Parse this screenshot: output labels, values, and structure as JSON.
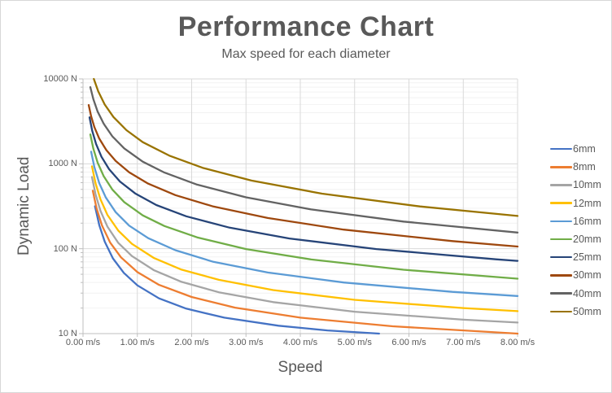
{
  "title": "Performance Chart",
  "subtitle": "Max speed for each diameter",
  "text_color": "#595959",
  "background": "#FFFFFF",
  "frame_border_color": "#D7D7D7",
  "grid": {
    "major_color": "#D9D9D9",
    "minor_color": "#F2F2F2",
    "axis_color": "#BFBFBF"
  },
  "x_axis": {
    "title": "Speed",
    "tick_labels": [
      "0.00 m/s",
      "1.00 m/s",
      "2.00 m/s",
      "3.00 m/s",
      "4.00 m/s",
      "5.00 m/s",
      "6.00 m/s",
      "7.00 m/s",
      "8.00 m/s"
    ],
    "tick_values": [
      0,
      1,
      2,
      3,
      4,
      5,
      6,
      7,
      8
    ]
  },
  "y_axis": {
    "title": "Dynamic Load",
    "tick_labels": [
      "10000 N",
      "1000 N",
      "100 N",
      "10 N"
    ],
    "tick_values": [
      10000,
      1000,
      100,
      10
    ]
  },
  "chart_data": {
    "type": "line",
    "title": "Performance Chart",
    "subtitle": "Max speed for each diameter",
    "xlabel": "Speed",
    "ylabel": "Dynamic Load",
    "x_unit": "m/s",
    "y_unit": "N",
    "x_scale": "linear",
    "y_scale": "log10",
    "xlim": [
      0,
      8
    ],
    "ylim": [
      10,
      10000
    ],
    "grid_on": true,
    "legend_position": "right",
    "series": [
      {
        "name": "6mm",
        "color": "#4472C4",
        "points": [
          [
            0.22,
            316
          ],
          [
            0.3,
            189
          ],
          [
            0.4,
            121
          ],
          [
            0.55,
            77
          ],
          [
            0.75,
            52
          ],
          [
            1,
            37
          ],
          [
            1.4,
            26
          ],
          [
            1.9,
            19.7
          ],
          [
            2.6,
            15.4
          ],
          [
            3.6,
            12.4
          ],
          [
            4.5,
            10.9
          ],
          [
            5.45,
            10
          ]
        ]
      },
      {
        "name": "8mm",
        "color": "#ED7D31",
        "points": [
          [
            0.18,
            482
          ],
          [
            0.25,
            298
          ],
          [
            0.35,
            187
          ],
          [
            0.5,
            118
          ],
          [
            0.7,
            79
          ],
          [
            1,
            53
          ],
          [
            1.4,
            37.5
          ],
          [
            2,
            27
          ],
          [
            2.8,
            20.2
          ],
          [
            4,
            15.4
          ],
          [
            5.7,
            12.2
          ],
          [
            8,
            10
          ]
        ]
      },
      {
        "name": "10mm",
        "color": "#A5A5A5",
        "points": [
          [
            0.165,
            700
          ],
          [
            0.23,
            437
          ],
          [
            0.32,
            280
          ],
          [
            0.45,
            182
          ],
          [
            0.65,
            117
          ],
          [
            0.9,
            82
          ],
          [
            1.3,
            56
          ],
          [
            1.8,
            41
          ],
          [
            2.5,
            30.7
          ],
          [
            3.5,
            23.5
          ],
          [
            5,
            18.1
          ],
          [
            7,
            14.6
          ],
          [
            8,
            13.5
          ]
        ]
      },
      {
        "name": "12mm",
        "color": "#FFC000",
        "points": [
          [
            0.165,
            935
          ],
          [
            0.23,
            590
          ],
          [
            0.32,
            383
          ],
          [
            0.45,
            250
          ],
          [
            0.65,
            163
          ],
          [
            0.9,
            114
          ],
          [
            1.3,
            78
          ],
          [
            1.8,
            57
          ],
          [
            2.5,
            43
          ],
          [
            3.5,
            32.6
          ],
          [
            5,
            25
          ],
          [
            7,
            20
          ],
          [
            8,
            18.4
          ]
        ]
      },
      {
        "name": "16mm",
        "color": "#5B9BD5",
        "points": [
          [
            0.15,
            1390
          ],
          [
            0.21,
            911
          ],
          [
            0.3,
            591
          ],
          [
            0.42,
            401
          ],
          [
            0.6,
            270
          ],
          [
            0.85,
            187
          ],
          [
            1.2,
            133
          ],
          [
            1.7,
            96
          ],
          [
            2.4,
            70
          ],
          [
            3.4,
            52.5
          ],
          [
            4.8,
            40
          ],
          [
            6.8,
            31
          ],
          [
            8,
            27.7
          ]
        ]
      },
      {
        "name": "20mm",
        "color": "#70AD47",
        "points": [
          [
            0.135,
            2220
          ],
          [
            0.19,
            1510
          ],
          [
            0.27,
            1030
          ],
          [
            0.38,
            716
          ],
          [
            0.54,
            498
          ],
          [
            0.76,
            354
          ],
          [
            1.1,
            247
          ],
          [
            1.5,
            185
          ],
          [
            2.1,
            136
          ],
          [
            3,
            99
          ],
          [
            4.2,
            74.6
          ],
          [
            5.9,
            56.5
          ],
          [
            8,
            44.4
          ]
        ]
      },
      {
        "name": "25mm",
        "color": "#264478",
        "points": [
          [
            0.12,
            3530
          ],
          [
            0.17,
            2450
          ],
          [
            0.24,
            1720
          ],
          [
            0.34,
            1210
          ],
          [
            0.48,
            865
          ],
          [
            0.68,
            619
          ],
          [
            0.96,
            448
          ],
          [
            1.35,
            327
          ],
          [
            1.9,
            241
          ],
          [
            2.7,
            177
          ],
          [
            3.8,
            132
          ],
          [
            5.4,
            99
          ],
          [
            7.6,
            75
          ],
          [
            8,
            72
          ]
        ]
      },
      {
        "name": "30mm",
        "color": "#9E480E",
        "points": [
          [
            0.105,
            4920
          ],
          [
            0.15,
            3620
          ],
          [
            0.21,
            2700
          ],
          [
            0.3,
            1980
          ],
          [
            0.43,
            1450
          ],
          [
            0.6,
            1080
          ],
          [
            0.85,
            793
          ],
          [
            1.2,
            584
          ],
          [
            1.7,
            428
          ],
          [
            2.4,
            314
          ],
          [
            3.4,
            230
          ],
          [
            4.8,
            168
          ],
          [
            6.8,
            123
          ],
          [
            8,
            106
          ]
        ]
      },
      {
        "name": "40mm",
        "color": "#636363",
        "points": [
          [
            0.135,
            8000
          ],
          [
            0.19,
            5770
          ],
          [
            0.27,
            4120
          ],
          [
            0.38,
            2970
          ],
          [
            0.54,
            2110
          ],
          [
            0.76,
            1520
          ],
          [
            1.1,
            1060
          ],
          [
            1.5,
            789
          ],
          [
            2.1,
            569
          ],
          [
            3,
            403
          ],
          [
            4.2,
            290
          ],
          [
            5.9,
            209
          ],
          [
            8,
            155
          ]
        ]
      },
      {
        "name": "50mm",
        "color": "#997300",
        "points": [
          [
            0.2,
            10000
          ],
          [
            0.28,
            7140
          ],
          [
            0.4,
            4990
          ],
          [
            0.56,
            3560
          ],
          [
            0.8,
            2490
          ],
          [
            1.1,
            1800
          ],
          [
            1.6,
            1240
          ],
          [
            2.2,
            898
          ],
          [
            3.1,
            635
          ],
          [
            4.4,
            445
          ],
          [
            6.2,
            315
          ],
          [
            8,
            243
          ]
        ]
      }
    ]
  }
}
